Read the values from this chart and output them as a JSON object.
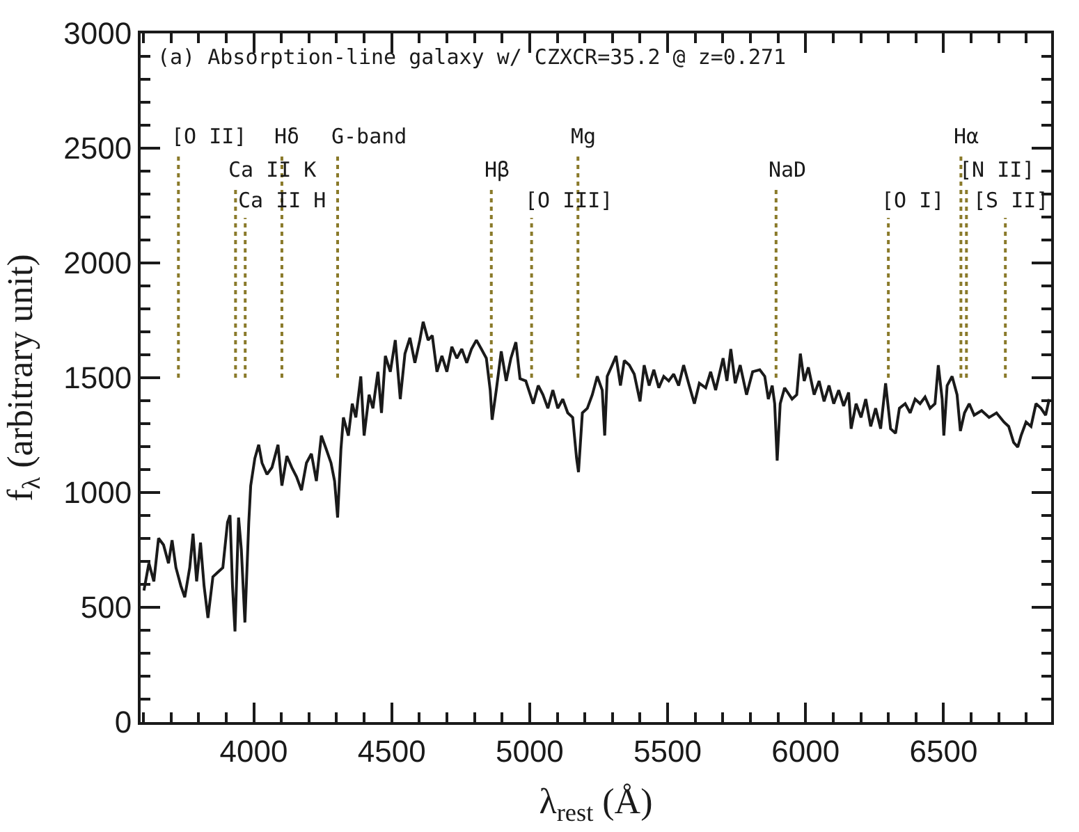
{
  "chart_data": {
    "type": "line",
    "title": "(a) Absorption-line galaxy w/ CZXCR=35.2 @ z=0.271",
    "xlabel": "λ$_{rest}$ (Å)",
    "ylabel": "f$_{λ}$ (arbitrary unit)",
    "xlim": [
      3590,
      6890
    ],
    "xticks": [
      {
        "value": 3600,
        "label": null
      },
      {
        "value": 3700,
        "label": null
      },
      {
        "value": 3800,
        "label": null
      },
      {
        "value": 3900,
        "label": null
      },
      4000,
      {
        "value": 4100,
        "label": null
      },
      {
        "value": 4200,
        "label": null
      },
      {
        "value": 4300,
        "label": null
      },
      {
        "value": 4400,
        "label": null
      },
      4500,
      {
        "value": 4600,
        "label": null
      },
      {
        "value": 4700,
        "label": null
      },
      {
        "value": 4800,
        "label": null
      },
      {
        "value": 4900,
        "label": null
      },
      5000,
      {
        "value": 5100,
        "label": null
      },
      {
        "value": 5200,
        "label": null
      },
      {
        "value": 5300,
        "label": null
      },
      {
        "value": 5400,
        "label": null
      },
      5500,
      {
        "value": 5600,
        "label": null
      },
      {
        "value": 5700,
        "label": null
      },
      {
        "value": 5800,
        "label": null
      },
      {
        "value": 5900,
        "label": null
      },
      6000,
      {
        "value": 6100,
        "label": null
      },
      {
        "value": 6200,
        "label": null
      },
      {
        "value": 6300,
        "label": null
      },
      {
        "value": 6400,
        "label": null
      },
      6500,
      {
        "value": 6600,
        "label": null
      },
      {
        "value": 6700,
        "label": null
      },
      {
        "value": 6800,
        "label": null
      }
    ],
    "ylim": [
      0,
      3000
    ],
    "yticks": [
      0,
      {
        "value": 100,
        "label": null
      },
      {
        "value": 200,
        "label": null
      },
      {
        "value": 300,
        "label": null
      },
      {
        "value": 400,
        "label": null
      },
      500,
      {
        "value": 600,
        "label": null
      },
      {
        "value": 700,
        "label": null
      },
      {
        "value": 800,
        "label": null
      },
      {
        "value": 900,
        "label": null
      },
      1000,
      {
        "value": 1100,
        "label": null
      },
      {
        "value": 1200,
        "label": null
      },
      {
        "value": 1300,
        "label": null
      },
      {
        "value": 1400,
        "label": null
      },
      1500,
      {
        "value": 1600,
        "label": null
      },
      {
        "value": 1700,
        "label": null
      },
      {
        "value": 1800,
        "label": null
      },
      {
        "value": 1900,
        "label": null
      },
      2000,
      {
        "value": 2100,
        "label": null
      },
      {
        "value": 2200,
        "label": null
      },
      {
        "value": 2300,
        "label": null
      },
      {
        "value": 2400,
        "label": null
      },
      2500,
      {
        "value": 2600,
        "label": null
      },
      {
        "value": 2700,
        "label": null
      },
      {
        "value": 2800,
        "label": null
      },
      {
        "value": 2900,
        "label": null
      },
      3000
    ],
    "marker": "none",
    "line_style": "solid",
    "series": [
      {
        "color": "#1a1a1a",
        "x": [
          3602,
          3620,
          3638,
          3655,
          3673,
          3691,
          3704,
          3718,
          3736,
          3750,
          3768,
          3780,
          3793,
          3807,
          3820,
          3834,
          3852,
          3870,
          3888,
          3905,
          3914,
          3923,
          3932,
          3945,
          3955,
          3968,
          3982,
          3989,
          4004,
          4018,
          4030,
          4048,
          4066,
          4088,
          4102,
          4120,
          4138,
          4155,
          4173,
          4191,
          4209,
          4227,
          4245,
          4263,
          4280,
          4293,
          4304,
          4316,
          4325,
          4343,
          4357,
          4370,
          4388,
          4400,
          4418,
          4432,
          4450,
          4463,
          4477,
          4495,
          4513,
          4531,
          4548,
          4566,
          4584,
          4602,
          4614,
          4632,
          4647,
          4664,
          4682,
          4700,
          4718,
          4736,
          4754,
          4772,
          4789,
          4807,
          4825,
          4843,
          4857,
          4864,
          4879,
          4897,
          4915,
          4932,
          4950,
          4965,
          4986,
          5013,
          5031,
          5048,
          5066,
          5084,
          5102,
          5120,
          5138,
          5156,
          5170,
          5177,
          5191,
          5209,
          5227,
          5245,
          5263,
          5272,
          5281,
          5299,
          5313,
          5329,
          5343,
          5361,
          5379,
          5400,
          5415,
          5433,
          5450,
          5468,
          5486,
          5504,
          5522,
          5540,
          5558,
          5576,
          5597,
          5615,
          5638,
          5656,
          5674,
          5701,
          5715,
          5729,
          5745,
          5763,
          5786,
          5808,
          5834,
          5852,
          5865,
          5879,
          5888,
          5897,
          5908,
          5924,
          5951,
          5968,
          5981,
          5995,
          6010,
          6031,
          6049,
          6067,
          6085,
          6102,
          6120,
          6138,
          6156,
          6165,
          6183,
          6201,
          6218,
          6236,
          6254,
          6272,
          6290,
          6308,
          6326,
          6340,
          6361,
          6379,
          6397,
          6415,
          6433,
          6451,
          6469,
          6481,
          6495,
          6501,
          6513,
          6531,
          6549,
          6561,
          6576,
          6593,
          6611,
          6638,
          6665,
          6692,
          6719,
          6736,
          6754,
          6769,
          6781,
          6799,
          6817,
          6835,
          6853,
          6870,
          6883
        ],
        "values": [
          573,
          692,
          613,
          801,
          772,
          692,
          792,
          673,
          593,
          544,
          673,
          821,
          613,
          782,
          593,
          454,
          633,
          653,
          673,
          871,
          901,
          593,
          395,
          891,
          752,
          434,
          871,
          1030,
          1149,
          1208,
          1129,
          1079,
          1109,
          1208,
          1030,
          1159,
          1109,
          1069,
          1010,
          1129,
          1169,
          1050,
          1248,
          1188,
          1129,
          1050,
          891,
          1188,
          1327,
          1248,
          1387,
          1327,
          1506,
          1248,
          1426,
          1367,
          1526,
          1347,
          1595,
          1526,
          1664,
          1407,
          1605,
          1674,
          1565,
          1664,
          1744,
          1664,
          1684,
          1526,
          1595,
          1526,
          1635,
          1585,
          1625,
          1565,
          1625,
          1664,
          1625,
          1585,
          1446,
          1317,
          1446,
          1615,
          1486,
          1585,
          1655,
          1496,
          1486,
          1387,
          1466,
          1426,
          1367,
          1446,
          1367,
          1407,
          1347,
          1327,
          1149,
          1089,
          1347,
          1367,
          1426,
          1506,
          1446,
          1248,
          1506,
          1555,
          1595,
          1466,
          1575,
          1555,
          1516,
          1397,
          1555,
          1466,
          1535,
          1456,
          1506,
          1486,
          1516,
          1466,
          1555,
          1476,
          1387,
          1476,
          1456,
          1526,
          1446,
          1585,
          1486,
          1625,
          1476,
          1555,
          1426,
          1526,
          1535,
          1506,
          1407,
          1466,
          1387,
          1139,
          1387,
          1456,
          1407,
          1426,
          1605,
          1486,
          1545,
          1426,
          1486,
          1397,
          1466,
          1387,
          1446,
          1377,
          1436,
          1278,
          1387,
          1327,
          1407,
          1288,
          1367,
          1278,
          1476,
          1278,
          1258,
          1367,
          1387,
          1347,
          1407,
          1387,
          1416,
          1367,
          1387,
          1555,
          1407,
          1248,
          1466,
          1506,
          1426,
          1268,
          1347,
          1387,
          1337,
          1357,
          1327,
          1347,
          1307,
          1288,
          1218,
          1198,
          1248,
          1307,
          1288,
          1387,
          1367,
          1337,
          1407
        ]
      }
    ],
    "ref_lines": [
      {
        "axis": "x",
        "value": 3727,
        "label": "[O II]",
        "color": "#8a7a2a",
        "line_style": "dotted"
      },
      {
        "axis": "x",
        "value": 3934,
        "label": "Ca II K",
        "color": "#8a7a2a",
        "line_style": "dotted"
      },
      {
        "axis": "x",
        "value": 3969,
        "label": "Ca II H",
        "color": "#8a7a2a",
        "line_style": "dotted"
      },
      {
        "axis": "x",
        "value": 4102,
        "label": "Hδ",
        "color": "#8a7a2a",
        "line_style": "dotted"
      },
      {
        "axis": "x",
        "value": 4304,
        "label": "G-band",
        "color": "#8a7a2a",
        "line_style": "dotted"
      },
      {
        "axis": "x",
        "value": 4861,
        "label": "Hβ",
        "color": "#8a7a2a",
        "line_style": "dotted"
      },
      {
        "axis": "x",
        "value": 5007,
        "label": "[O III]",
        "color": "#8a7a2a",
        "line_style": "dotted"
      },
      {
        "axis": "x",
        "value": 5175,
        "label": "Mg",
        "color": "#8a7a2a",
        "line_style": "dotted"
      },
      {
        "axis": "x",
        "value": 5893,
        "label": "NaD",
        "color": "#8a7a2a",
        "line_style": "dotted"
      },
      {
        "axis": "x",
        "value": 6300,
        "label": "[O I]",
        "color": "#8a7a2a",
        "line_style": "dotted"
      },
      {
        "axis": "x",
        "value": 6563,
        "label": "Hα",
        "color": "#8a7a2a",
        "line_style": "dotted"
      },
      {
        "axis": "x",
        "value": 6583,
        "label": "[N II]",
        "color": "#8a7a2a",
        "line_style": "dotted"
      },
      {
        "axis": "x",
        "value": 6724,
        "label": "[S II]",
        "color": "#8a7a2a",
        "line_style": "dotted"
      }
    ]
  }
}
